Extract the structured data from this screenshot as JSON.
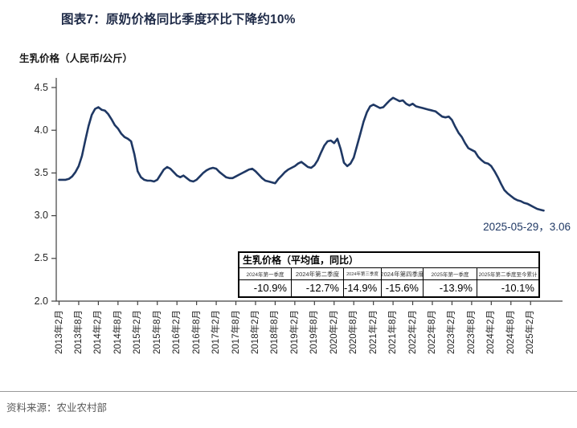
{
  "header": {
    "title": "图表7：原奶价格同比季度环比下降约10%"
  },
  "chart": {
    "unit_label": "生乳价格（人民币/公斤）",
    "annotation_text": "2025-05-29，3.06"
  },
  "chart_data": {
    "type": "line",
    "title": "原奶价格（生乳价格）",
    "ylabel": "生乳价格（人民币/公斤）",
    "ylim": [
      2.0,
      4.5
    ],
    "y_ticks": [
      2.0,
      2.5,
      3.0,
      3.5,
      4.0,
      4.5
    ],
    "grid": false,
    "legend": "none",
    "x_tick_labels": [
      "2013年2月",
      "2013年8月",
      "2014年2月",
      "2014年8月",
      "2015年2月",
      "2015年8月",
      "2016年2月",
      "2016年8月",
      "2017年2月",
      "2017年8月",
      "2018年2月",
      "2018年8月",
      "2019年2月",
      "2019年8月",
      "2020年2月",
      "2020年8月",
      "2021年2月",
      "2021年8月",
      "2022年2月",
      "2022年8月",
      "2023年2月",
      "2023年8月",
      "2024年2月",
      "2024年8月",
      "2025年2月"
    ],
    "series": [
      {
        "name": "生乳价格",
        "color": "#1f3864",
        "start": "2013-02",
        "interval": "monthly",
        "values": [
          3.42,
          3.42,
          3.42,
          3.43,
          3.46,
          3.51,
          3.58,
          3.7,
          3.88,
          4.05,
          4.18,
          4.25,
          4.27,
          4.24,
          4.23,
          4.19,
          4.13,
          4.06,
          4.02,
          3.96,
          3.92,
          3.9,
          3.87,
          3.72,
          3.52,
          3.45,
          3.42,
          3.41,
          3.41,
          3.4,
          3.42,
          3.48,
          3.54,
          3.57,
          3.55,
          3.51,
          3.47,
          3.45,
          3.47,
          3.44,
          3.41,
          3.4,
          3.42,
          3.46,
          3.5,
          3.53,
          3.55,
          3.56,
          3.55,
          3.51,
          3.48,
          3.45,
          3.44,
          3.44,
          3.46,
          3.48,
          3.5,
          3.52,
          3.54,
          3.55,
          3.52,
          3.48,
          3.44,
          3.41,
          3.4,
          3.39,
          3.38,
          3.43,
          3.47,
          3.51,
          3.54,
          3.56,
          3.58,
          3.61,
          3.63,
          3.6,
          3.57,
          3.56,
          3.59,
          3.65,
          3.74,
          3.82,
          3.87,
          3.88,
          3.85,
          3.9,
          3.78,
          3.62,
          3.58,
          3.61,
          3.68,
          3.82,
          3.96,
          4.1,
          4.21,
          4.28,
          4.3,
          4.28,
          4.26,
          4.27,
          4.31,
          4.35,
          4.38,
          4.36,
          4.34,
          4.35,
          4.31,
          4.29,
          4.31,
          4.28,
          4.27,
          4.26,
          4.25,
          4.24,
          4.23,
          4.22,
          4.19,
          4.16,
          4.15,
          4.16,
          4.12,
          4.04,
          3.97,
          3.92,
          3.85,
          3.79,
          3.77,
          3.75,
          3.69,
          3.65,
          3.62,
          3.61,
          3.58,
          3.52,
          3.45,
          3.37,
          3.3,
          3.26,
          3.23,
          3.2,
          3.18,
          3.17,
          3.15,
          3.14,
          3.12,
          3.1,
          3.08,
          3.07,
          3.06
        ]
      }
    ],
    "annotation": {
      "date": "2025-05-29",
      "value": 3.06,
      "text": "2025-05-29，3.06"
    }
  },
  "inset_table": {
    "title": "生乳价格（平均值，同比）",
    "columns": [
      "2024年第一季度",
      "2024年第二季度",
      "2024年第三季度",
      "2024年第四季度",
      "2025年第一季度",
      "2025年第二季度至今累计"
    ],
    "values": [
      "-10.9%",
      "-12.7%",
      "-14.9%",
      "-15.6%",
      "-13.9%",
      "-10.1%"
    ]
  },
  "footer": {
    "source": "资料来源：农业农村部"
  }
}
